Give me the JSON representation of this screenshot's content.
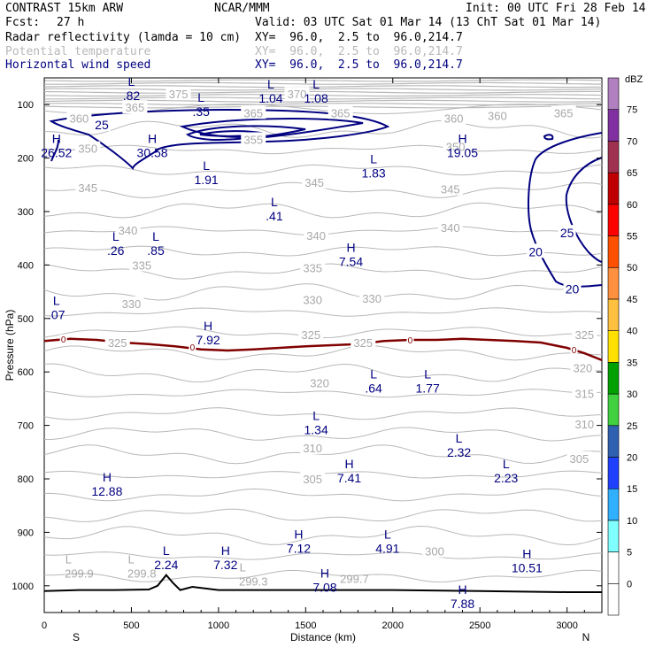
{
  "header": {
    "model": "CONTRAST 15km ARW",
    "org": "NCAR/MMM",
    "init": "Init: 00 UTC Fri 28 Feb 14",
    "fcst_label": "Fcst:",
    "fcst_value": "27 h",
    "valid": "Valid: 03 UTC Sat 01 Mar 14 (13 ChT Sat 01 Mar 14)",
    "fields": [
      {
        "name": "Radar reflectivity (lamda = 10 cm)",
        "xy": "XY=  96.0,  2.5 to  96.0,214.7",
        "color": "#000000"
      },
      {
        "name": "Potential temperature",
        "xy": "XY=  96.0,  2.5 to  96.0,214.7",
        "color": "#b8b8b8"
      },
      {
        "name": "Horizontal wind speed",
        "xy": "XY=  96.0,  2.5 to  96.0,214.7",
        "color": "#000080"
      }
    ]
  },
  "chart_data": {
    "type": "contour-cross-section",
    "xlabel": "Distance (km)",
    "ylabel": "Pressure (hPa)",
    "xlim": [
      0,
      3200
    ],
    "ylim": [
      1050,
      50
    ],
    "x_ticks": [
      0,
      500,
      1000,
      1500,
      2000,
      2500,
      3000
    ],
    "x_tick_labels": [
      "0",
      "500",
      "1000",
      "1500",
      "2000",
      "2500",
      "3000"
    ],
    "y_ticks": [
      100,
      200,
      300,
      400,
      500,
      600,
      700,
      800,
      900,
      1000
    ],
    "y_tick_labels": [
      "100",
      "200",
      "300",
      "400",
      "500",
      "600",
      "700",
      "800",
      "900",
      "1000"
    ],
    "x_end_labels": {
      "left": "S",
      "right": "N"
    },
    "colorbar": {
      "title": "dBZ",
      "levels": [
        0,
        5,
        10,
        15,
        20,
        25,
        30,
        35,
        40,
        45,
        50,
        55,
        60,
        65,
        70,
        75
      ],
      "labels": [
        "0",
        "5",
        "10",
        "15",
        "20",
        "25",
        "30",
        "35",
        "40",
        "45",
        "50",
        "55",
        "60",
        "65",
        "70",
        "75"
      ],
      "colors": [
        "#ffffff",
        "#80ffff",
        "#30b0ff",
        "#2040ff",
        "#3060b0",
        "#40d040",
        "#00a000",
        "#ffe000",
        "#ffc040",
        "#ff9040",
        "#ff5000",
        "#ff0000",
        "#c00000",
        "#a03050",
        "#8030a0",
        "#b080c0"
      ]
    },
    "theta_labels": [
      {
        "text": "375",
        "x": 770,
        "p": 80
      },
      {
        "text": "370",
        "x": 1450,
        "p": 80
      },
      {
        "text": "365",
        "x": 520,
        "p": 105
      },
      {
        "text": "365",
        "x": 1200,
        "p": 115
      },
      {
        "text": "365",
        "x": 1700,
        "p": 115
      },
      {
        "text": "365",
        "x": 2980,
        "p": 115
      },
      {
        "text": "360",
        "x": 200,
        "p": 125
      },
      {
        "text": "360",
        "x": 2350,
        "p": 125
      },
      {
        "text": "360",
        "x": 2600,
        "p": 120
      },
      {
        "text": "355",
        "x": 1200,
        "p": 165
      },
      {
        "text": "350",
        "x": 250,
        "p": 182
      },
      {
        "text": "350",
        "x": 2360,
        "p": 178
      },
      {
        "text": "345",
        "x": 250,
        "p": 255
      },
      {
        "text": "345",
        "x": 1550,
        "p": 245
      },
      {
        "text": "345",
        "x": 2330,
        "p": 258
      },
      {
        "text": "340",
        "x": 480,
        "p": 335
      },
      {
        "text": "340",
        "x": 1560,
        "p": 345
      },
      {
        "text": "340",
        "x": 2330,
        "p": 330
      },
      {
        "text": "335",
        "x": 560,
        "p": 400
      },
      {
        "text": "335",
        "x": 1540,
        "p": 405
      },
      {
        "text": "330",
        "x": 500,
        "p": 472
      },
      {
        "text": "330",
        "x": 1540,
        "p": 465
      },
      {
        "text": "330",
        "x": 1880,
        "p": 462
      },
      {
        "text": "325",
        "x": 420,
        "p": 545
      },
      {
        "text": "325",
        "x": 1530,
        "p": 530
      },
      {
        "text": "325",
        "x": 1830,
        "p": 545
      },
      {
        "text": "325",
        "x": 3100,
        "p": 530
      },
      {
        "text": "320",
        "x": 1580,
        "p": 620
      },
      {
        "text": "320",
        "x": 3090,
        "p": 592
      },
      {
        "text": "315",
        "x": 3100,
        "p": 640
      },
      {
        "text": "310",
        "x": 1540,
        "p": 742
      },
      {
        "text": "310",
        "x": 3100,
        "p": 697
      },
      {
        "text": "305",
        "x": 1540,
        "p": 800
      },
      {
        "text": "305",
        "x": 3070,
        "p": 762
      },
      {
        "text": "300",
        "x": 2240,
        "p": 935
      }
    ],
    "theta_lows": [
      {
        "text": "L",
        "sub": "299.9",
        "x": 200,
        "p": 965
      },
      {
        "text": "L",
        "sub": "299.8",
        "x": 560,
        "p": 965
      },
      {
        "text": "L",
        "sub": "299.3",
        "x": 1200,
        "p": 980
      },
      {
        "text": "",
        "sub": "299.7",
        "x": 1780,
        "p": 975
      }
    ],
    "wind_extrema": [
      {
        "type": "L",
        "value": ".82",
        "x": 500,
        "p": 65
      },
      {
        "type": "L",
        "value": "1.04",
        "x": 1300,
        "p": 70
      },
      {
        "type": "L",
        "value": "1.08",
        "x": 1560,
        "p": 70
      },
      {
        "type": "L",
        "value": ".35",
        "x": 900,
        "p": 95
      },
      {
        "type": "H",
        "value": "26.52",
        "x": 70,
        "p": 172
      },
      {
        "type": "H",
        "value": "30.58",
        "x": 620,
        "p": 172
      },
      {
        "type": "H",
        "value": "19.05",
        "x": 2400,
        "p": 172
      },
      {
        "type": "L",
        "value": "1.91",
        "x": 930,
        "p": 222
      },
      {
        "type": "L",
        "value": "1.83",
        "x": 1890,
        "p": 210
      },
      {
        "type": "L",
        "value": ".41",
        "x": 1320,
        "p": 290
      },
      {
        "type": "L",
        "value": ".26",
        "x": 410,
        "p": 355
      },
      {
        "type": "L",
        "value": ".85",
        "x": 640,
        "p": 355
      },
      {
        "type": "H",
        "value": "7.54",
        "x": 1760,
        "p": 375
      },
      {
        "type": "L",
        "value": ".07",
        "x": 70,
        "p": 475
      },
      {
        "type": "H",
        "value": "7.92",
        "x": 940,
        "p": 522
      },
      {
        "type": "L",
        "value": ".64",
        "x": 1890,
        "p": 612
      },
      {
        "type": "L",
        "value": "1.77",
        "x": 2200,
        "p": 612
      },
      {
        "type": "L",
        "value": "1.34",
        "x": 1560,
        "p": 690
      },
      {
        "type": "L",
        "value": "2.32",
        "x": 2380,
        "p": 732
      },
      {
        "type": "H",
        "value": "7.41",
        "x": 1750,
        "p": 780
      },
      {
        "type": "L",
        "value": "2.23",
        "x": 2650,
        "p": 780
      },
      {
        "type": "H",
        "value": "12.88",
        "x": 360,
        "p": 805
      },
      {
        "type": "H",
        "value": "7.12",
        "x": 1460,
        "p": 912
      },
      {
        "type": "L",
        "value": "4.91",
        "x": 1970,
        "p": 912
      },
      {
        "type": "L",
        "value": "2.24",
        "x": 700,
        "p": 942
      },
      {
        "type": "H",
        "value": "7.32",
        "x": 1040,
        "p": 942
      },
      {
        "type": "H",
        "value": "10.51",
        "x": 2770,
        "p": 948
      },
      {
        "type": "H",
        "value": "7.08",
        "x": 1610,
        "p": 985
      },
      {
        "type": "H",
        "value": "7.88",
        "x": 2400,
        "p": 1015
      }
    ],
    "wind_contour_labels": [
      {
        "text": "25",
        "x": 330,
        "p": 138
      },
      {
        "text": "25",
        "x": 3000,
        "p": 340
      },
      {
        "text": "20",
        "x": 2820,
        "p": 375
      },
      {
        "text": "20",
        "x": 3030,
        "p": 445
      }
    ],
    "reflectivity_zero_labels": [
      {
        "text": "0",
        "x": 110,
        "p": 538
      },
      {
        "text": "0",
        "x": 850,
        "p": 553
      },
      {
        "text": "0",
        "x": 2100,
        "p": 540
      },
      {
        "text": "0",
        "x": 3040,
        "p": 558
      }
    ],
    "reflectivity_zero_line": {
      "x": [
        0,
        150,
        300,
        450,
        600,
        750,
        900,
        1050,
        1200,
        1350,
        1500,
        1650,
        1800,
        1950,
        2100,
        2250,
        2400,
        2550,
        2700,
        2850,
        3000,
        3100,
        3200
      ],
      "p": [
        542,
        538,
        540,
        545,
        548,
        552,
        558,
        560,
        558,
        555,
        552,
        550,
        548,
        542,
        540,
        540,
        538,
        540,
        542,
        545,
        555,
        565,
        578
      ]
    },
    "terrain_pressure": {
      "x": [
        0,
        200,
        400,
        600,
        650,
        700,
        740,
        780,
        850,
        1000,
        1500,
        2000,
        2500,
        3000,
        3200
      ],
      "p": [
        1010,
        1008,
        1008,
        1007,
        1000,
        980,
        995,
        1008,
        1002,
        1008,
        1008,
        1008,
        1010,
        1012,
        1012
      ]
    }
  }
}
